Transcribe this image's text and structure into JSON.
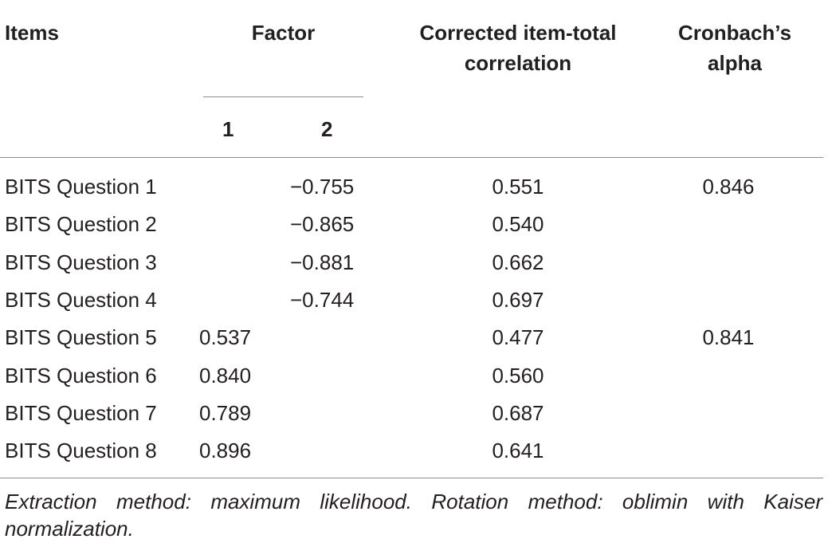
{
  "table": {
    "headers": {
      "items": "Items",
      "factor": "Factor",
      "factor_1": "1",
      "factor_2": "2",
      "corrected_line1": "Corrected item-total",
      "corrected_line2": "correlation",
      "alpha_line1": "Cronbach’s",
      "alpha_line2": "alpha"
    },
    "rows": [
      {
        "item": "BITS Question 1",
        "f1": "",
        "f2": "−0.755",
        "corr": "0.551",
        "alpha": "0.846"
      },
      {
        "item": "BITS Question 2",
        "f1": "",
        "f2": "−0.865",
        "corr": "0.540",
        "alpha": ""
      },
      {
        "item": "BITS Question 3",
        "f1": "",
        "f2": "−0.881",
        "corr": "0.662",
        "alpha": ""
      },
      {
        "item": "BITS Question 4",
        "f1": "",
        "f2": "−0.744",
        "corr": "0.697",
        "alpha": ""
      },
      {
        "item": "BITS Question 5",
        "f1": "0.537",
        "f2": "",
        "corr": "0.477",
        "alpha": "0.841"
      },
      {
        "item": "BITS Question 6",
        "f1": "0.840",
        "f2": "",
        "corr": "0.560",
        "alpha": ""
      },
      {
        "item": "BITS Question 7",
        "f1": "0.789",
        "f2": "",
        "corr": "0.687",
        "alpha": ""
      },
      {
        "item": "BITS Question 8",
        "f1": "0.896",
        "f2": "",
        "corr": "0.641",
        "alpha": ""
      }
    ],
    "footnote": "Extraction method: maximum likelihood. Rotation method: oblimin with Kaiser normalization."
  }
}
